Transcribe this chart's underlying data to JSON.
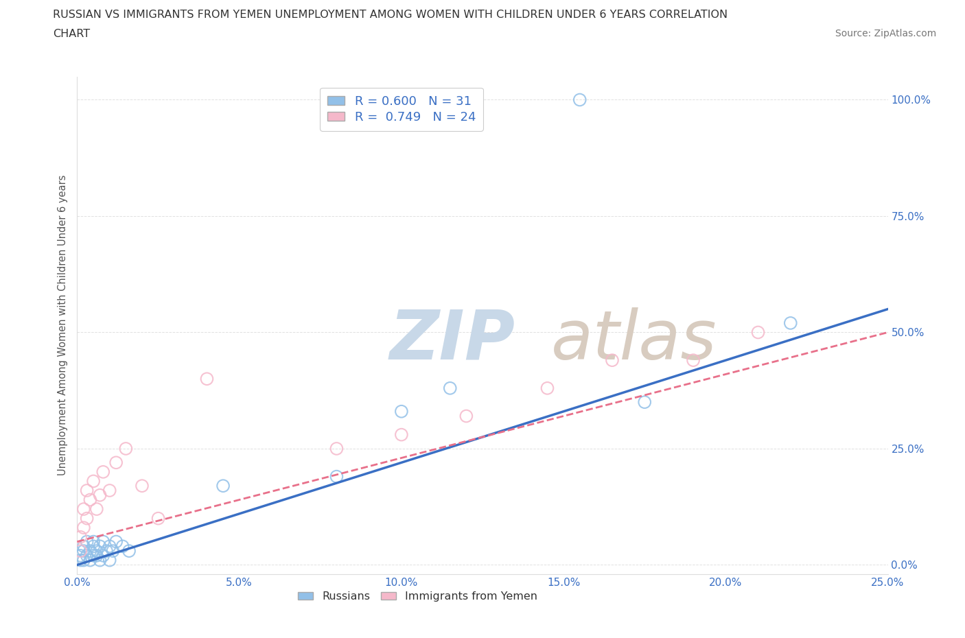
{
  "title_line1": "RUSSIAN VS IMMIGRANTS FROM YEMEN UNEMPLOYMENT AMONG WOMEN WITH CHILDREN UNDER 6 YEARS CORRELATION",
  "title_line2": "CHART",
  "source": "Source: ZipAtlas.com",
  "ylabel": "Unemployment Among Women with Children Under 6 years",
  "xlim": [
    0.0,
    0.25
  ],
  "ylim": [
    -0.02,
    1.05
  ],
  "x_tick_vals": [
    0.0,
    0.05,
    0.1,
    0.15,
    0.2,
    0.25
  ],
  "x_tick_labels": [
    "0.0%",
    "5.0%",
    "10.0%",
    "15.0%",
    "20.0%",
    "25.0%"
  ],
  "y_tick_vals": [
    0.0,
    0.25,
    0.5,
    0.75,
    1.0
  ],
  "y_tick_labels": [
    "0.0%",
    "25.0%",
    "50.0%",
    "75.0%",
    "100.0%"
  ],
  "R1": 0.6,
  "N1": 31,
  "R2": 0.749,
  "N2": 24,
  "blue_color": "#92c0e8",
  "pink_color": "#f5b8ca",
  "blue_line_color": "#3a6fc4",
  "pink_line_color": "#e8708a",
  "background_color": "#ffffff",
  "grid_color": "#cccccc",
  "watermark_zip_color": "#c8d8e8",
  "watermark_atlas_color": "#d8ccc0",
  "russians_x": [
    0.001,
    0.001,
    0.002,
    0.002,
    0.002,
    0.003,
    0.003,
    0.004,
    0.004,
    0.005,
    0.005,
    0.005,
    0.006,
    0.006,
    0.007,
    0.007,
    0.008,
    0.008,
    0.009,
    0.01,
    0.01,
    0.011,
    0.012,
    0.014,
    0.016,
    0.045,
    0.08,
    0.1,
    0.115,
    0.175,
    0.22
  ],
  "russians_y": [
    0.01,
    0.02,
    0.01,
    0.03,
    0.04,
    0.02,
    0.05,
    0.01,
    0.03,
    0.02,
    0.04,
    0.05,
    0.02,
    0.03,
    0.01,
    0.04,
    0.02,
    0.05,
    0.03,
    0.01,
    0.04,
    0.03,
    0.05,
    0.04,
    0.03,
    0.17,
    0.19,
    0.33,
    0.38,
    0.35,
    0.52
  ],
  "russian_outlier_x": [
    0.155
  ],
  "russian_outlier_y": [
    1.0
  ],
  "yemen_x": [
    0.001,
    0.001,
    0.002,
    0.002,
    0.003,
    0.003,
    0.004,
    0.005,
    0.006,
    0.007,
    0.008,
    0.01,
    0.012,
    0.015,
    0.02,
    0.025,
    0.04,
    0.08,
    0.1,
    0.12,
    0.145,
    0.165,
    0.19,
    0.21
  ],
  "yemen_y": [
    0.03,
    0.06,
    0.08,
    0.12,
    0.1,
    0.16,
    0.14,
    0.18,
    0.12,
    0.15,
    0.2,
    0.16,
    0.22,
    0.25,
    0.17,
    0.1,
    0.4,
    0.25,
    0.28,
    0.32,
    0.38,
    0.44,
    0.44,
    0.5
  ],
  "blue_trendline": [
    0.0,
    0.0,
    0.25,
    0.55
  ],
  "pink_trendline": [
    0.0,
    0.05,
    0.25,
    0.5
  ]
}
